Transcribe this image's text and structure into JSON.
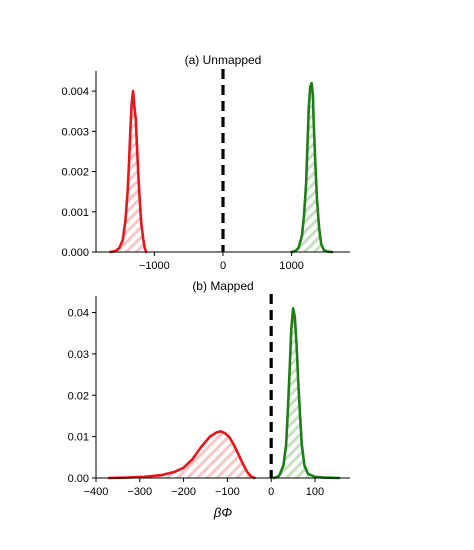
{
  "colors": {
    "unbound": "#e8161b",
    "bound": "#1e7d17",
    "unbound_fill": "#f7c6c6",
    "bound_fill": "#c5dfc0",
    "divider": "#000000"
  },
  "chart_data": [
    {
      "type": "area",
      "title": "(a) Unmapped",
      "xlabel": "",
      "ylabel": "",
      "xlim": [
        -1850,
        1850
      ],
      "ylim": [
        0,
        0.0045
      ],
      "xticks": [
        -1000,
        0,
        1000
      ],
      "xtick_labels": [
        "−1000",
        "0",
        "1000"
      ],
      "yticks": [
        0,
        0.001,
        0.002,
        0.003,
        0.004
      ],
      "ytick_labels": [
        "0.000",
        "0.001",
        "0.002",
        "0.003",
        "0.004"
      ],
      "divider_x": 0,
      "grid": false,
      "series": [
        {
          "color_key": "unbound",
          "hatched": true,
          "x": [
            -1640,
            -1570,
            -1510,
            -1460,
            -1420,
            -1390,
            -1370,
            -1350,
            -1330,
            -1310,
            -1290,
            -1270,
            -1250,
            -1220,
            -1190,
            -1160,
            -1140,
            -1120
          ],
          "y": [
            0,
            2e-05,
            0.0001,
            0.0003,
            0.0008,
            0.0015,
            0.0022,
            0.003,
            0.0037,
            0.004,
            0.0036,
            0.0033,
            0.0025,
            0.0015,
            0.0007,
            0.0003,
            0.0001,
            0
          ]
        },
        {
          "color_key": "bound",
          "hatched": true,
          "x": [
            1000,
            1050,
            1100,
            1150,
            1180,
            1210,
            1230,
            1250,
            1270,
            1290,
            1310,
            1320,
            1340,
            1370,
            1400,
            1430,
            1470,
            1520,
            1590
          ],
          "y": [
            0,
            2e-05,
            0.0001,
            0.0004,
            0.0009,
            0.0017,
            0.0026,
            0.0036,
            0.0041,
            0.0042,
            0.0039,
            0.0033,
            0.0024,
            0.0013,
            0.0006,
            0.0002,
            5e-05,
            1e-05,
            0
          ]
        }
      ]
    },
    {
      "type": "area",
      "title": "(b) Mapped",
      "xlabel": "βΦ",
      "ylabel": "",
      "xlim": [
        -400,
        180
      ],
      "ylim": [
        0,
        0.044
      ],
      "xticks": [
        -400,
        -300,
        -200,
        -100,
        0,
        100
      ],
      "xtick_labels": [
        "−400",
        "−300",
        "−200",
        "−100",
        "0",
        "100"
      ],
      "yticks": [
        0,
        0.01,
        0.02,
        0.03,
        0.04
      ],
      "ytick_labels": [
        "0.00",
        "0.01",
        "0.02",
        "0.03",
        "0.04"
      ],
      "divider_x": 0,
      "grid": false,
      "series": [
        {
          "color_key": "unbound",
          "hatched": true,
          "x": [
            -370,
            -330,
            -290,
            -250,
            -220,
            -200,
            -180,
            -160,
            -140,
            -125,
            -115,
            -105,
            -95,
            -85,
            -75,
            -65,
            -55,
            -45,
            -38
          ],
          "y": [
            0,
            0.0001,
            0.0003,
            0.0007,
            0.0015,
            0.0025,
            0.0045,
            0.0075,
            0.01,
            0.011,
            0.0113,
            0.0108,
            0.0098,
            0.008,
            0.0058,
            0.0035,
            0.0015,
            0.0003,
            0
          ]
        },
        {
          "color_key": "bound",
          "hatched": true,
          "x": [
            6,
            18,
            28,
            34,
            38,
            42,
            46,
            50,
            54,
            58,
            62,
            66,
            70,
            76,
            84,
            100,
            120,
            155
          ],
          "y": [
            0,
            0.0005,
            0.003,
            0.008,
            0.016,
            0.026,
            0.036,
            0.041,
            0.039,
            0.032,
            0.023,
            0.015,
            0.008,
            0.003,
            0.001,
            0.0003,
            0.0001,
            0
          ]
        }
      ]
    }
  ]
}
